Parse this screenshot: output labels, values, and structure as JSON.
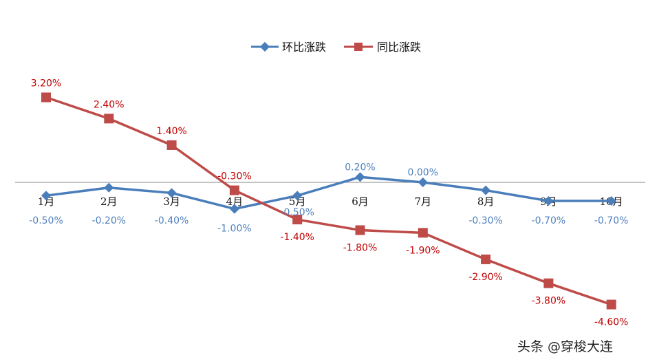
{
  "chart_data": {
    "type": "line",
    "categories": [
      "1月",
      "2月",
      "3月",
      "4月",
      "5月",
      "6月",
      "7月",
      "8月",
      "9月",
      "10月"
    ],
    "series": [
      {
        "name": "环比涨跌",
        "color": "#4a7ebb",
        "marker": "diamond",
        "values": [
          -0.5,
          -0.2,
          -0.4,
          -1.0,
          -0.5,
          0.2,
          0.0,
          -0.3,
          -0.7,
          -0.7
        ],
        "labels": [
          "-0.50%",
          "-0.20%",
          "-0.40%",
          "-1.00%",
          "-0.50%",
          "0.20%",
          "0.00%",
          "-0.30%",
          "-0.70%",
          "-0.70%"
        ]
      },
      {
        "name": "同比涨跌",
        "color": "#be4b48",
        "marker": "square",
        "values": [
          3.2,
          2.4,
          1.4,
          -0.3,
          -1.4,
          -1.8,
          -1.9,
          -2.9,
          -3.8,
          -4.6
        ],
        "labels": [
          "3.20%",
          "2.40%",
          "1.40%",
          "-0.30%",
          "-1.40%",
          "-1.80%",
          "-1.90%",
          "-2.90%",
          "-3.80%",
          "-4.60%"
        ]
      }
    ],
    "legend": "top",
    "label_colors": {
      "环比涨跌": "#4f81bd",
      "同比涨跌": "#c00000"
    }
  },
  "watermark": "头条 @穿梭大连"
}
